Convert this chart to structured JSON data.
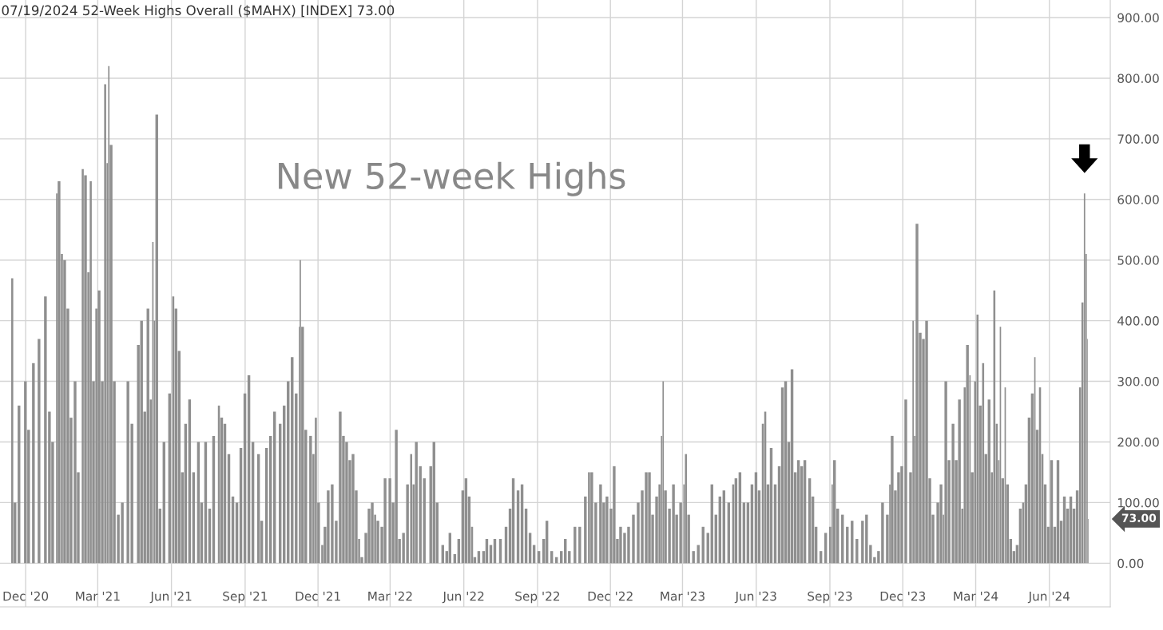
{
  "chart_data": {
    "type": "bar",
    "title": "07/19/2024 52-Week Highs Overall ($MAHX) [INDEX] 73.00",
    "annotations": [
      "New 52-week Highs",
      "73.00"
    ],
    "x": [
      "2020-11-13",
      "2020-11-16",
      "2020-11-21",
      "2020-11-29",
      "2020-12-03",
      "2020-12-09",
      "2020-12-16",
      "2020-12-24",
      "2020-12-29",
      "2021-01-02",
      "2021-01-08",
      "2021-01-10",
      "2021-01-14",
      "2021-01-17",
      "2021-01-21",
      "2021-01-25",
      "2021-01-30",
      "2021-02-03",
      "2021-02-09",
      "2021-02-12",
      "2021-02-16",
      "2021-02-19",
      "2021-02-22",
      "2021-02-26",
      "2021-03-01",
      "2021-03-05",
      "2021-03-09",
      "2021-03-12",
      "2021-03-14",
      "2021-03-16",
      "2021-03-20",
      "2021-03-25",
      "2021-03-30",
      "2021-04-06",
      "2021-04-11",
      "2021-04-19",
      "2021-04-23",
      "2021-04-27",
      "2021-05-01",
      "2021-05-05",
      "2021-05-08",
      "2021-05-10",
      "2021-05-12",
      "2021-05-16",
      "2021-05-21",
      "2021-05-28",
      "2021-06-02",
      "2021-06-05",
      "2021-06-09",
      "2021-06-13",
      "2021-06-17",
      "2021-06-22",
      "2021-06-27",
      "2021-07-03",
      "2021-07-07",
      "2021-07-12",
      "2021-07-17",
      "2021-07-22",
      "2021-07-29",
      "2021-08-01",
      "2021-08-05",
      "2021-08-10",
      "2021-08-15",
      "2021-08-20",
      "2021-08-25",
      "2021-08-30",
      "2021-09-04",
      "2021-09-09",
      "2021-09-16",
      "2021-09-20",
      "2021-09-26",
      "2021-10-01",
      "2021-10-06",
      "2021-10-13",
      "2021-10-18",
      "2021-10-23",
      "2021-10-28",
      "2021-11-02",
      "2021-11-07",
      "2021-11-08",
      "2021-11-10",
      "2021-11-14",
      "2021-11-20",
      "2021-11-24",
      "2021-11-27",
      "2021-11-30",
      "2021-12-05",
      "2021-12-08",
      "2021-12-12",
      "2021-12-17",
      "2021-12-22",
      "2021-12-27",
      "2021-12-31",
      "2022-01-04",
      "2022-01-08",
      "2022-01-12",
      "2022-01-16",
      "2022-01-20",
      "2022-01-23",
      "2022-01-28",
      "2022-02-01",
      "2022-02-05",
      "2022-02-09",
      "2022-02-12",
      "2022-02-17",
      "2022-02-21",
      "2022-02-27",
      "2022-03-03",
      "2022-03-07",
      "2022-03-11",
      "2022-03-16",
      "2022-03-21",
      "2022-03-26",
      "2022-03-29",
      "2022-04-01",
      "2022-04-06",
      "2022-04-11",
      "2022-04-19",
      "2022-04-23",
      "2022-04-27",
      "2022-05-04",
      "2022-05-09",
      "2022-05-13",
      "2022-05-19",
      "2022-05-24",
      "2022-05-29",
      "2022-06-02",
      "2022-06-06",
      "2022-06-10",
      "2022-06-13",
      "2022-06-18",
      "2022-06-24",
      "2022-06-28",
      "2022-07-03",
      "2022-07-08",
      "2022-07-15",
      "2022-07-22",
      "2022-07-27",
      "2022-07-31",
      "2022-08-06",
      "2022-08-11",
      "2022-08-16",
      "2022-08-21",
      "2022-08-26",
      "2022-09-01",
      "2022-09-07",
      "2022-09-11",
      "2022-09-17",
      "2022-09-23",
      "2022-09-29",
      "2022-10-04",
      "2022-10-09",
      "2022-10-16",
      "2022-10-22",
      "2022-10-29",
      "2022-11-03",
      "2022-11-06",
      "2022-11-11",
      "2022-11-17",
      "2022-11-21",
      "2022-11-25",
      "2022-11-30",
      "2022-12-04",
      "2022-12-08",
      "2022-12-12",
      "2022-12-17",
      "2022-12-22",
      "2022-12-28",
      "2023-01-03",
      "2023-01-08",
      "2023-01-13",
      "2023-01-17",
      "2023-01-21",
      "2023-01-26",
      "2023-01-30",
      "2023-02-02",
      "2023-02-04",
      "2023-02-06",
      "2023-02-11",
      "2023-02-16",
      "2023-02-20",
      "2023-02-25",
      "2023-03-02",
      "2023-03-04",
      "2023-03-07",
      "2023-03-13",
      "2023-03-19",
      "2023-03-25",
      "2023-03-31",
      "2023-04-05",
      "2023-04-10",
      "2023-04-15",
      "2023-04-20",
      "2023-04-26",
      "2023-05-02",
      "2023-05-05",
      "2023-05-10",
      "2023-05-15",
      "2023-05-20",
      "2023-05-25",
      "2023-05-30",
      "2023-06-03",
      "2023-06-08",
      "2023-06-11",
      "2023-06-14",
      "2023-06-18",
      "2023-06-23",
      "2023-06-28",
      "2023-07-02",
      "2023-07-06",
      "2023-07-10",
      "2023-07-14",
      "2023-07-18",
      "2023-07-22",
      "2023-07-26",
      "2023-07-30",
      "2023-08-05",
      "2023-08-09",
      "2023-08-13",
      "2023-08-19",
      "2023-08-25",
      "2023-08-31",
      "2023-09-03",
      "2023-09-05",
      "2023-09-09",
      "2023-09-15",
      "2023-09-21",
      "2023-09-27",
      "2023-10-03",
      "2023-10-10",
      "2023-10-15",
      "2023-10-20",
      "2023-10-25",
      "2023-10-30",
      "2023-11-04",
      "2023-11-10",
      "2023-11-14",
      "2023-11-16",
      "2023-11-20",
      "2023-11-24",
      "2023-11-28",
      "2023-12-03",
      "2023-12-09",
      "2023-12-13",
      "2023-12-15",
      "2023-12-17",
      "2023-12-21",
      "2023-12-25",
      "2023-12-29",
      "2024-01-02",
      "2024-01-06",
      "2024-01-12",
      "2024-01-16",
      "2024-01-20",
      "2024-01-22",
      "2024-01-26",
      "2024-01-31",
      "2024-02-04",
      "2024-02-08",
      "2024-02-12",
      "2024-02-15",
      "2024-02-18",
      "2024-02-22",
      "2024-02-24",
      "2024-02-28",
      "2024-03-02",
      "2024-03-05",
      "2024-03-09",
      "2024-03-12",
      "2024-03-16",
      "2024-03-20",
      "2024-03-23",
      "2024-03-26",
      "2024-03-29",
      "2024-03-31",
      "2024-04-02",
      "2024-04-06",
      "2024-04-08",
      "2024-04-12",
      "2024-04-16",
      "2024-04-20",
      "2024-04-24",
      "2024-04-28",
      "2024-05-01",
      "2024-05-05",
      "2024-05-09",
      "2024-05-13",
      "2024-05-15",
      "2024-05-19",
      "2024-05-22",
      "2024-05-25",
      "2024-05-29",
      "2024-06-02",
      "2024-06-06",
      "2024-06-10",
      "2024-06-14",
      "2024-06-18",
      "2024-06-22",
      "2024-06-26",
      "2024-06-30",
      "2024-07-04",
      "2024-07-08",
      "2024-07-11",
      "2024-07-14",
      "2024-07-16",
      "2024-07-18",
      "2024-07-19"
    ],
    "values": [
      470,
      100,
      260,
      300,
      220,
      330,
      370,
      440,
      250,
      200,
      610,
      630,
      510,
      500,
      420,
      240,
      300,
      150,
      650,
      640,
      480,
      630,
      300,
      420,
      450,
      300,
      790,
      660,
      820,
      690,
      300,
      80,
      100,
      300,
      230,
      360,
      400,
      250,
      420,
      270,
      530,
      400,
      740,
      90,
      200,
      280,
      440,
      420,
      350,
      150,
      230,
      270,
      150,
      200,
      100,
      200,
      90,
      210,
      260,
      240,
      230,
      180,
      110,
      100,
      190,
      280,
      310,
      200,
      180,
      70,
      190,
      210,
      250,
      230,
      260,
      300,
      340,
      280,
      390,
      500,
      390,
      220,
      210,
      180,
      240,
      100,
      30,
      60,
      120,
      130,
      70,
      250,
      210,
      200,
      170,
      180,
      120,
      40,
      10,
      50,
      90,
      100,
      80,
      70,
      60,
      140,
      140,
      100,
      220,
      40,
      50,
      130,
      180,
      130,
      200,
      160,
      140,
      160,
      200,
      100,
      30,
      20,
      50,
      15,
      40,
      120,
      140,
      110,
      60,
      10,
      20,
      20,
      40,
      30,
      40,
      40,
      60,
      90,
      140,
      120,
      130,
      90,
      50,
      30,
      20,
      40,
      70,
      20,
      10,
      20,
      40,
      20,
      60,
      60,
      110,
      150,
      150,
      100,
      130,
      100,
      110,
      90,
      160,
      40,
      60,
      50,
      60,
      80,
      100,
      120,
      150,
      150,
      80,
      110,
      130,
      210,
      300,
      120,
      90,
      130,
      80,
      100,
      130,
      180,
      80,
      20,
      30,
      60,
      50,
      130,
      80,
      110,
      120,
      100,
      130,
      140,
      150,
      100,
      100,
      130,
      150,
      120,
      230,
      250,
      130,
      190,
      130,
      160,
      290,
      300,
      200,
      320,
      150,
      170,
      160,
      170,
      140,
      110,
      60,
      20,
      50,
      60,
      130,
      170,
      90,
      80,
      60,
      70,
      40,
      70,
      80,
      30,
      10,
      20,
      100,
      80,
      130,
      210,
      120,
      150,
      160,
      270,
      150,
      400,
      210,
      560,
      380,
      370,
      400,
      140,
      80,
      100,
      130,
      80,
      300,
      170,
      230,
      170,
      270,
      90,
      290,
      360,
      310,
      150,
      300,
      410,
      260,
      330,
      180,
      270,
      150,
      450,
      230,
      170,
      390,
      140,
      290,
      130,
      40,
      20,
      30,
      90,
      100,
      130,
      240,
      280,
      340,
      220,
      290,
      180,
      130,
      60,
      170,
      60,
      170,
      70,
      110,
      90,
      110,
      90,
      120,
      290,
      430,
      610,
      510,
      370,
      73
    ],
    "color": "#8f8f8f",
    "xlim": [
      "2020-10-30",
      "2024-08-16"
    ],
    "xticks": [
      {
        "value": "2020-12-01",
        "label": "Dec '20"
      },
      {
        "value": "2021-03-01",
        "label": "Mar '21"
      },
      {
        "value": "2021-06-01",
        "label": "Jun '21"
      },
      {
        "value": "2021-09-01",
        "label": "Sep '21"
      },
      {
        "value": "2021-12-01",
        "label": "Dec '21"
      },
      {
        "value": "2022-03-01",
        "label": "Mar '22"
      },
      {
        "value": "2022-06-01",
        "label": "Jun '22"
      },
      {
        "value": "2022-09-01",
        "label": "Sep '22"
      },
      {
        "value": "2022-12-01",
        "label": "Dec '22"
      },
      {
        "value": "2023-03-01",
        "label": "Mar '23"
      },
      {
        "value": "2023-06-01",
        "label": "Jun '23"
      },
      {
        "value": "2023-09-01",
        "label": "Sep '23"
      },
      {
        "value": "2023-12-01",
        "label": "Dec '23"
      },
      {
        "value": "2024-03-01",
        "label": "Mar '24"
      },
      {
        "value": "2024-06-01",
        "label": "Jun '24"
      }
    ],
    "ylim": [
      -72,
      929
    ],
    "yticks": [
      {
        "value": 0,
        "label": "0.00"
      },
      {
        "value": 100,
        "label": "100.00"
      },
      {
        "value": 200,
        "label": "200.00"
      },
      {
        "value": 300,
        "label": "300.00"
      },
      {
        "value": 400,
        "label": "400.00"
      },
      {
        "value": 500,
        "label": "500.00"
      },
      {
        "value": 600,
        "label": "600.00"
      },
      {
        "value": 700,
        "label": "700.00"
      },
      {
        "value": 800,
        "label": "800.00"
      },
      {
        "value": 900,
        "label": "900.00"
      }
    ],
    "grid": true
  }
}
